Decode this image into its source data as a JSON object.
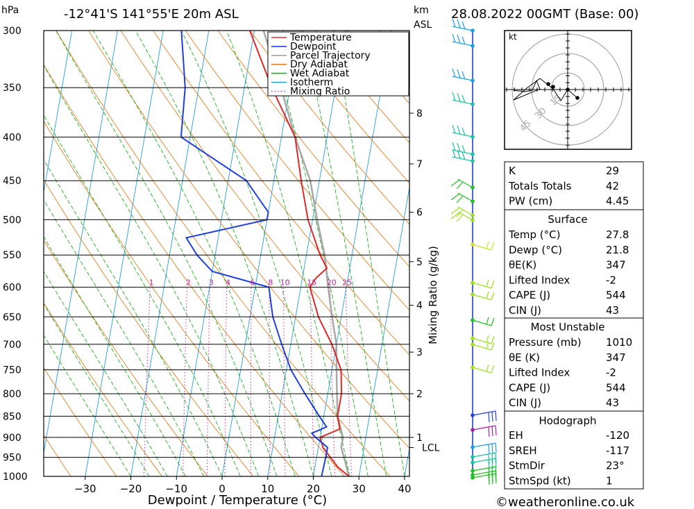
{
  "header": {
    "pressure_unit": "hPa",
    "location": "-12°41'S  141°55'E  20m  ASL",
    "km_unit": "km",
    "asl": "ASL",
    "datetime": "28.08.2022  00GMT  (Base: 00)"
  },
  "axes": {
    "xlabel": "Dewpoint / Temperature (°C)",
    "mixing_label": "Mixing Ratio (g/kg)",
    "xticks": [
      -30,
      -20,
      -10,
      0,
      10,
      20,
      30,
      40
    ],
    "pressure_levels": [
      300,
      350,
      400,
      450,
      500,
      550,
      600,
      650,
      700,
      750,
      800,
      850,
      900,
      950,
      1000
    ],
    "km_ticks": [
      {
        "label": "8",
        "p": 375
      },
      {
        "label": "7",
        "p": 430
      },
      {
        "label": "6",
        "p": 490
      },
      {
        "label": "5",
        "p": 560
      },
      {
        "label": "4",
        "p": 630
      },
      {
        "label": "3",
        "p": 715
      },
      {
        "label": "2",
        "p": 800
      },
      {
        "label": "1",
        "p": 900
      }
    ],
    "lcl_label": "LCL",
    "lcl_p": 925,
    "mixing_ratios": [
      "1",
      "2",
      "3",
      "4",
      "6",
      "8",
      "10",
      "15",
      "20",
      "25"
    ]
  },
  "legend": {
    "items": [
      {
        "label": "Temperature",
        "color": "#e03030",
        "style": "solid"
      },
      {
        "label": "Dewpoint",
        "color": "#2040e0",
        "style": "solid"
      },
      {
        "label": "Parcel Trajectory",
        "color": "#a0a0a0",
        "style": "solid"
      },
      {
        "label": "Dry Adiabat",
        "color": "#e08020",
        "style": "solid"
      },
      {
        "label": "Wet Adiabat",
        "color": "#20b020",
        "style": "solid"
      },
      {
        "label": "Isotherm",
        "color": "#20a0e0",
        "style": "solid"
      },
      {
        "label": "Mixing Ratio",
        "color": "#d020a0",
        "style": "dotted"
      }
    ]
  },
  "chart_data": {
    "type": "line",
    "temperature": [
      [
        1000,
        27.8
      ],
      [
        975,
        25
      ],
      [
        950,
        23
      ],
      [
        925,
        21
      ],
      [
        900,
        20
      ],
      [
        880,
        24
      ],
      [
        850,
        23
      ],
      [
        800,
        23
      ],
      [
        750,
        22
      ],
      [
        700,
        19
      ],
      [
        650,
        15
      ],
      [
        600,
        12
      ],
      [
        585,
        13
      ],
      [
        570,
        15
      ],
      [
        550,
        13
      ],
      [
        500,
        9
      ],
      [
        450,
        6
      ],
      [
        400,
        3
      ],
      [
        350,
        -4
      ],
      [
        300,
        -11
      ]
    ],
    "dewpoint": [
      [
        1000,
        21.8
      ],
      [
        950,
        22
      ],
      [
        925,
        22
      ],
      [
        900,
        19
      ],
      [
        890,
        18
      ],
      [
        875,
        21
      ],
      [
        850,
        19
      ],
      [
        800,
        15
      ],
      [
        750,
        11
      ],
      [
        700,
        8
      ],
      [
        650,
        5
      ],
      [
        600,
        3
      ],
      [
        575,
        -10
      ],
      [
        550,
        -14
      ],
      [
        525,
        -17
      ],
      [
        500,
        0
      ],
      [
        490,
        0
      ],
      [
        450,
        -6
      ],
      [
        400,
        -22
      ],
      [
        350,
        -23
      ],
      [
        300,
        -26
      ]
    ],
    "parcel": [
      [
        1000,
        27.8
      ],
      [
        950,
        26
      ],
      [
        925,
        25
      ],
      [
        900,
        25
      ],
      [
        850,
        23
      ],
      [
        800,
        22
      ],
      [
        750,
        21
      ],
      [
        700,
        20
      ],
      [
        650,
        18
      ],
      [
        600,
        16
      ],
      [
        550,
        14
      ],
      [
        500,
        11
      ],
      [
        450,
        8
      ],
      [
        400,
        3
      ],
      [
        350,
        -2
      ],
      [
        300,
        -8
      ]
    ]
  },
  "hodograph": {
    "unit": "kt",
    "rings": [
      "15",
      "30",
      "45"
    ]
  },
  "indices": {
    "top": [
      {
        "label": "K",
        "value": "29"
      },
      {
        "label": "Totals Totals",
        "value": "42"
      },
      {
        "label": "PW (cm)",
        "value": "4.45"
      }
    ],
    "surface": {
      "title": "Surface",
      "rows": [
        {
          "label": "Temp (°C)",
          "value": "27.8"
        },
        {
          "label": "Dewp (°C)",
          "value": "21.8"
        },
        {
          "label": "θE(K)",
          "value": "347"
        },
        {
          "label": "Lifted Index",
          "value": "-2"
        },
        {
          "label": "CAPE (J)",
          "value": "544"
        },
        {
          "label": "CIN (J)",
          "value": "43"
        }
      ]
    },
    "most_unstable": {
      "title": "Most Unstable",
      "rows": [
        {
          "label": "Pressure (mb)",
          "value": "1010"
        },
        {
          "label": "θE (K)",
          "value": "347"
        },
        {
          "label": "Lifted Index",
          "value": "-2"
        },
        {
          "label": "CAPE (J)",
          "value": "544"
        },
        {
          "label": "CIN (J)",
          "value": "43"
        }
      ]
    },
    "hodograph_box": {
      "title": "Hodograph",
      "rows": [
        {
          "label": "EH",
          "value": "-120"
        },
        {
          "label": "SREH",
          "value": "-117"
        },
        {
          "label": "StmDir",
          "value": "23°"
        },
        {
          "label": "StmSpd (kt)",
          "value": "1"
        }
      ]
    }
  },
  "footer": {
    "copyright": "©weatheronline.co.uk"
  }
}
